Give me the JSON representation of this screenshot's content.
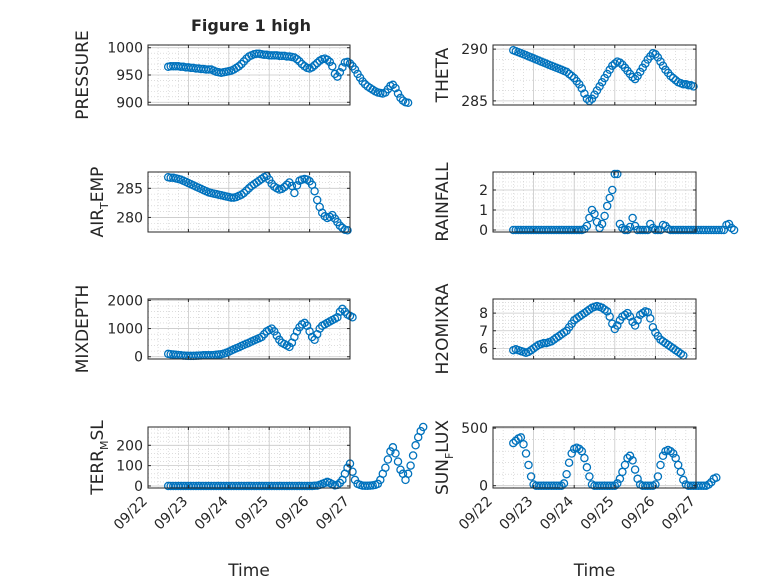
{
  "colors": {
    "marker": "#0072BD",
    "axis": "#262626",
    "grid": "#c8c8c8",
    "background": "#ffffff"
  },
  "chart_data": [
    {
      "id": "pressure",
      "type": "scatter",
      "title": "Figure 1 high",
      "ylabel": {
        "main": "PRESSURE",
        "sub": "",
        "tail": ""
      },
      "xlim": [
        "09/22",
        "09/27"
      ],
      "ylim": [
        895,
        1005
      ],
      "yticks": [
        900,
        950,
        1000
      ],
      "xtick_labels_shown": false,
      "grid": "major+minor",
      "x_start": "09/22 12:00",
      "x_step_hours": 1.5,
      "y": [
        965,
        966,
        966,
        966,
        966,
        965,
        965,
        964,
        964,
        963,
        963,
        962,
        962,
        961,
        961,
        960,
        960,
        960,
        958,
        956,
        955,
        954,
        955,
        956,
        957,
        958,
        960,
        963,
        966,
        970,
        975,
        980,
        984,
        986,
        988,
        989,
        989,
        988,
        987,
        987,
        986,
        986,
        986,
        986,
        985,
        985,
        985,
        984,
        984,
        983,
        982,
        979,
        975,
        970,
        966,
        963,
        962,
        964,
        968,
        972,
        976,
        979,
        980,
        978,
        974,
        966,
        952,
        947,
        955,
        964,
        973,
        974,
        971,
        966,
        960,
        952,
        945,
        938,
        933,
        929,
        926,
        923,
        920,
        918,
        917,
        916,
        918,
        924,
        930,
        932,
        926,
        916,
        908,
        903,
        900,
        899
      ]
    },
    {
      "id": "theta",
      "type": "scatter",
      "title": "",
      "ylabel": {
        "main": "THETA",
        "sub": "",
        "tail": ""
      },
      "xlim": [
        "09/22",
        "09/27"
      ],
      "ylim": [
        284.6,
        290.4
      ],
      "yticks": [
        285,
        290
      ],
      "xtick_labels_shown": false,
      "grid": "major+minor",
      "x_start": "09/22 12:00",
      "x_step_hours": 1.5,
      "y": [
        289.9,
        289.8,
        289.7,
        289.6,
        289.5,
        289.4,
        289.3,
        289.2,
        289.1,
        289.0,
        288.9,
        288.8,
        288.7,
        288.6,
        288.5,
        288.4,
        288.3,
        288.2,
        288.1,
        288.0,
        287.9,
        287.8,
        287.6,
        287.4,
        287.2,
        286.9,
        286.6,
        286.2,
        285.7,
        285.2,
        285.0,
        285.2,
        285.6,
        286.0,
        286.4,
        286.8,
        287.2,
        287.6,
        288.0,
        288.4,
        288.6,
        288.8,
        288.7,
        288.5,
        288.2,
        287.9,
        287.6,
        287.3,
        287.1,
        287.4,
        287.8,
        288.2,
        288.6,
        289.0,
        289.3,
        289.6,
        289.5,
        289.2,
        288.8,
        288.4,
        288.0,
        287.7,
        287.4,
        287.2,
        287.0,
        286.8,
        286.7,
        286.6,
        286.6,
        286.5,
        286.5,
        286.4
      ]
    },
    {
      "id": "air_temp",
      "type": "scatter",
      "title": "",
      "ylabel": {
        "main": "AIR",
        "sub": "T",
        "tail": "EMP"
      },
      "xlim": [
        "09/22",
        "09/27"
      ],
      "ylim": [
        277.5,
        287.8
      ],
      "yticks": [
        280,
        285
      ],
      "xtick_labels_shown": false,
      "grid": "major+minor",
      "x_start": "09/22 12:00",
      "x_step_hours": 1.5,
      "y": [
        286.9,
        286.8,
        286.8,
        286.7,
        286.6,
        286.5,
        286.3,
        286.1,
        285.9,
        285.7,
        285.5,
        285.3,
        285.1,
        284.9,
        284.7,
        284.5,
        284.3,
        284.2,
        284.1,
        284.0,
        283.9,
        283.8,
        283.7,
        283.6,
        283.5,
        283.4,
        283.4,
        283.5,
        283.7,
        283.9,
        284.2,
        284.6,
        285.0,
        285.4,
        285.7,
        286.0,
        286.3,
        286.6,
        286.9,
        287.1,
        286.5,
        285.8,
        285.3,
        285.0,
        284.8,
        284.9,
        285.2,
        285.6,
        286.0,
        285.4,
        284.2,
        285.5,
        286.3,
        286.5,
        286.6,
        286.5,
        286.2,
        285.6,
        284.5,
        283.0,
        281.8,
        280.8,
        280.2,
        279.9,
        280.1,
        280.4,
        279.8,
        279.2,
        278.6,
        278.2,
        277.9,
        277.8
      ]
    },
    {
      "id": "rainfall",
      "type": "scatter",
      "title": "",
      "ylabel": {
        "main": "RAINFALL",
        "sub": "",
        "tail": ""
      },
      "xlim": [
        "09/22",
        "09/27"
      ],
      "ylim": [
        -0.1,
        2.9
      ],
      "yticks": [
        0,
        1,
        2
      ],
      "xtick_labels_shown": false,
      "grid": "major+minor",
      "x_start": "09/22 12:00",
      "x_step_hours": 1.5,
      "y": [
        0,
        0,
        0,
        0,
        0,
        0,
        0,
        0,
        0,
        0,
        0,
        0,
        0,
        0,
        0,
        0,
        0,
        0,
        0,
        0,
        0,
        0,
        0,
        0,
        0,
        0,
        0,
        0,
        0.05,
        0.2,
        0.6,
        1.0,
        0.8,
        0.4,
        0.1,
        0.3,
        0.7,
        1.2,
        1.6,
        2.0,
        2.8,
        2.8,
        0.3,
        0.1,
        0,
        0,
        0.15,
        0.6,
        0.2,
        0,
        0,
        0,
        0,
        0,
        0.3,
        0.1,
        0,
        0,
        0,
        0.25,
        0.2,
        0.05,
        0,
        0,
        0,
        0,
        0,
        0,
        0,
        0,
        0,
        0,
        0,
        0,
        0,
        0,
        0,
        0,
        0,
        0,
        0,
        0,
        0,
        0,
        0.25,
        0.3,
        0.1,
        0
      ]
    },
    {
      "id": "mixdepth",
      "type": "scatter",
      "title": "",
      "ylabel": {
        "main": "MIXDEPTH",
        "sub": "",
        "tail": ""
      },
      "xlim": [
        "09/22",
        "09/27"
      ],
      "ylim": [
        -80,
        2050
      ],
      "yticks": [
        0,
        1000,
        2000
      ],
      "xtick_labels_shown": false,
      "grid": "major+minor",
      "x_start": "09/22 12:00",
      "x_step_hours": 1.5,
      "y": [
        100,
        90,
        80,
        70,
        60,
        50,
        40,
        35,
        30,
        30,
        30,
        35,
        40,
        45,
        50,
        50,
        50,
        50,
        60,
        70,
        80,
        90,
        110,
        140,
        180,
        220,
        260,
        300,
        340,
        380,
        420,
        460,
        500,
        540,
        580,
        620,
        660,
        700,
        800,
        900,
        950,
        1000,
        900,
        750,
        600,
        500,
        450,
        400,
        350,
        500,
        700,
        900,
        1050,
        1150,
        1200,
        1100,
        900,
        700,
        600,
        800,
        1000,
        1100,
        1150,
        1200,
        1250,
        1300,
        1350,
        1400,
        1600,
        1700,
        1600,
        1500,
        1450,
        1400
      ]
    },
    {
      "id": "h2omixra",
      "type": "scatter",
      "title": "",
      "ylabel": {
        "main": "H2OMIXRA",
        "sub": "",
        "tail": ""
      },
      "xlim": [
        "09/22",
        "09/27"
      ],
      "ylim": [
        5.4,
        8.8
      ],
      "yticks": [
        6,
        7,
        8
      ],
      "xtick_labels_shown": false,
      "grid": "major+minor",
      "x_start": "09/22 12:00",
      "x_step_hours": 1.5,
      "y": [
        5.9,
        5.95,
        5.9,
        5.85,
        5.8,
        5.75,
        5.8,
        5.9,
        6.0,
        6.1,
        6.2,
        6.25,
        6.3,
        6.3,
        6.35,
        6.4,
        6.5,
        6.6,
        6.7,
        6.8,
        6.9,
        7.0,
        7.2,
        7.4,
        7.6,
        7.7,
        7.8,
        7.9,
        8.0,
        8.1,
        8.2,
        8.3,
        8.35,
        8.4,
        8.35,
        8.3,
        8.2,
        8.1,
        7.8,
        7.4,
        7.1,
        7.3,
        7.6,
        7.8,
        7.9,
        8.0,
        7.8,
        7.5,
        7.3,
        7.6,
        7.9,
        8.0,
        8.1,
        8.05,
        7.7,
        7.2,
        6.9,
        6.7,
        6.5,
        6.4,
        6.3,
        6.2,
        6.1,
        6.0,
        5.9,
        5.8,
        5.7,
        5.6
      ]
    },
    {
      "id": "terr_msl",
      "type": "scatter",
      "title": "",
      "ylabel": {
        "main": "TERR",
        "sub": "M",
        "tail": "SL"
      },
      "xlim": [
        "09/22",
        "09/27"
      ],
      "ylim": [
        -10,
        290
      ],
      "yticks": [
        0,
        100,
        200
      ],
      "xtick_labels_shown": true,
      "xticks": [
        "09/22",
        "09/23",
        "09/24",
        "09/25",
        "09/26",
        "09/27"
      ],
      "xlabel": "Time",
      "grid": "major+minor",
      "x_start": "09/22 12:00",
      "x_step_hours": 1.5,
      "y": [
        0,
        0,
        0,
        0,
        0,
        0,
        0,
        0,
        0,
        0,
        0,
        0,
        0,
        0,
        0,
        0,
        0,
        0,
        0,
        0,
        0,
        0,
        0,
        0,
        0,
        0,
        0,
        0,
        0,
        0,
        0,
        0,
        0,
        0,
        0,
        0,
        0,
        0,
        0,
        0,
        0,
        0,
        0,
        0,
        0,
        0,
        0,
        0,
        0,
        0,
        0,
        0,
        0,
        0,
        0,
        0,
        0,
        0,
        1,
        2,
        5,
        10,
        15,
        20,
        15,
        8,
        3,
        5,
        15,
        30,
        60,
        90,
        110,
        70,
        30,
        10,
        5,
        2,
        1,
        1,
        2,
        3,
        5,
        10,
        30,
        60,
        90,
        130,
        170,
        190,
        160,
        120,
        80,
        60,
        30,
        60,
        100,
        150,
        200,
        240,
        270,
        290
      ]
    },
    {
      "id": "sun_flux",
      "type": "scatter",
      "title": "",
      "ylabel": {
        "main": "SUN",
        "sub": "F",
        "tail": "LUX"
      },
      "xlim": [
        "09/22",
        "09/27"
      ],
      "ylim": [
        -20,
        510
      ],
      "yticks": [
        0,
        500
      ],
      "xtick_labels_shown": true,
      "xticks": [
        "09/22",
        "09/23",
        "09/24",
        "09/25",
        "09/26",
        "09/27"
      ],
      "xlabel": "Time",
      "grid": "major+minor",
      "x_start": "09/22 12:00",
      "x_step_hours": 1.5,
      "y": [
        370,
        390,
        410,
        420,
        360,
        280,
        180,
        80,
        10,
        0,
        0,
        0,
        0,
        0,
        0,
        0,
        0,
        0,
        0,
        0,
        20,
        100,
        200,
        280,
        320,
        330,
        320,
        300,
        240,
        160,
        80,
        10,
        0,
        0,
        0,
        0,
        0,
        0,
        0,
        0,
        0,
        20,
        60,
        120,
        180,
        240,
        260,
        220,
        140,
        60,
        10,
        0,
        0,
        0,
        0,
        0,
        10,
        80,
        180,
        260,
        300,
        310,
        300,
        280,
        240,
        180,
        120,
        50,
        10,
        0,
        0,
        0,
        0,
        0,
        0,
        0,
        0,
        10,
        30,
        60,
        70
      ]
    }
  ]
}
